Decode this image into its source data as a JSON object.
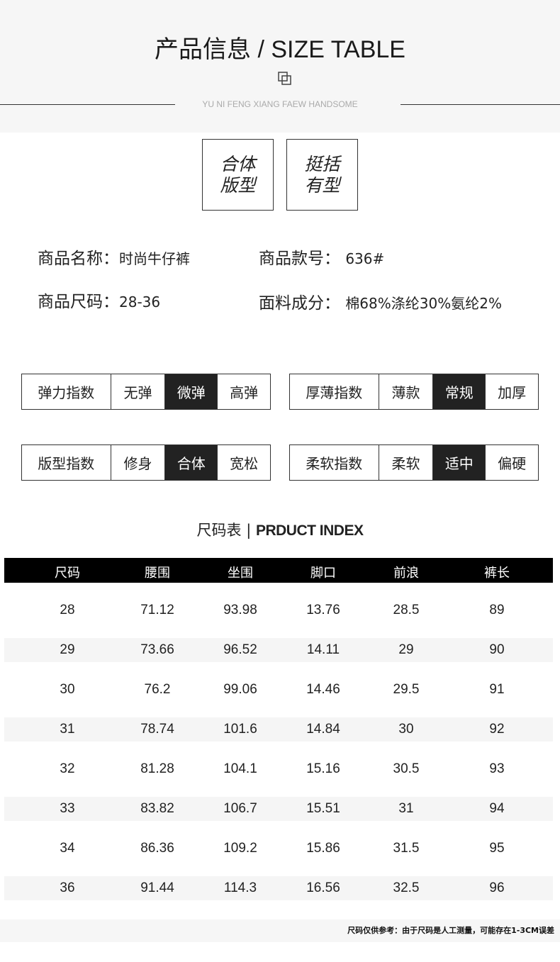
{
  "header": {
    "title": "产品信息 / SIZE TABLE",
    "subtitle": "YU NI FENG XIANG FAEW HANDSOME",
    "icon": "overlapping-squares-icon"
  },
  "tags": [
    {
      "line1": "合体",
      "line2": "版型"
    },
    {
      "line1": "挺括",
      "line2": "有型"
    }
  ],
  "info": [
    {
      "label": "商品名称：",
      "value": "时尚牛仔裤"
    },
    {
      "label": "商品款号：",
      "value": "636#"
    },
    {
      "label": "商品尺码：",
      "value": "28-36"
    },
    {
      "label": "面料成分：",
      "value": "棉68%涤纶30%氨纶2%"
    }
  ],
  "indices": [
    {
      "label": "弹力指数",
      "options": [
        "无弹",
        "微弹",
        "高弹"
      ],
      "selected": 1
    },
    {
      "label": "厚薄指数",
      "options": [
        "薄款",
        "常规",
        "加厚"
      ],
      "selected": 1
    },
    {
      "label": "版型指数",
      "options": [
        "修身",
        "合体",
        "宽松"
      ],
      "selected": 1
    },
    {
      "label": "柔软指数",
      "options": [
        "柔软",
        "适中",
        "偏硬"
      ],
      "selected": 1
    }
  ],
  "table": {
    "title_cn": "尺码表 | ",
    "title_en": "PRDUCT INDEX",
    "headers": [
      "尺码",
      "腰围",
      "坐围",
      "脚口",
      "前浪",
      "裤长"
    ],
    "rows": [
      [
        "28",
        "71.12",
        "93.98",
        "13.76",
        "28.5",
        "89"
      ],
      [
        "29",
        "73.66",
        "96.52",
        "14.11",
        "29",
        "90"
      ],
      [
        "30",
        "76.2",
        "99.06",
        "14.46",
        "29.5",
        "91"
      ],
      [
        "31",
        "78.74",
        "101.6",
        "14.84",
        "30",
        "92"
      ],
      [
        "32",
        "81.28",
        "104.1",
        "15.16",
        "30.5",
        "93"
      ],
      [
        "33",
        "83.82",
        "106.7",
        "15.51",
        "31",
        "94"
      ],
      [
        "34",
        "86.36",
        "109.2",
        "15.86",
        "31.5",
        "95"
      ],
      [
        "36",
        "91.44",
        "114.3",
        "16.56",
        "32.5",
        "96"
      ]
    ]
  },
  "footer": {
    "note": "尺码仅供参考：由于尺码是人工测量，可能存在1-3CM误差"
  }
}
